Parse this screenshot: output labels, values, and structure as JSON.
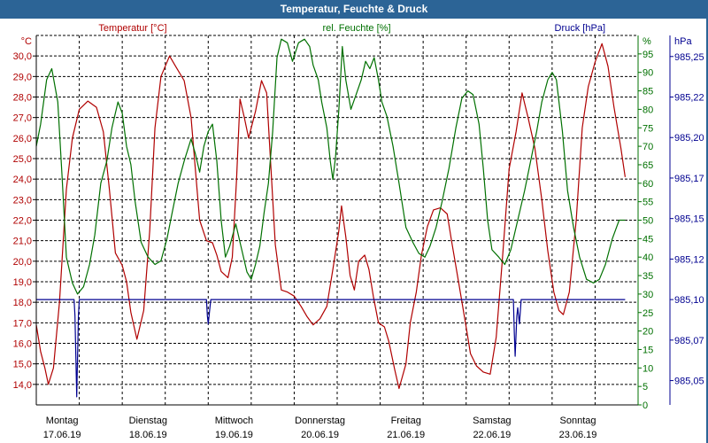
{
  "window": {
    "title": "Temperatur, Feuchte & Druck"
  },
  "colors": {
    "temperature": "#b00000",
    "humidity": "#007000",
    "pressure": "#000090",
    "titlebar": "#2c6496"
  },
  "chart_data": {
    "type": "line",
    "title": "Temperatur, Feuchte & Druck",
    "grid": true,
    "axes": {
      "left": {
        "label": "Temperatur [°C]",
        "unit": "°C",
        "range": [
          13.0,
          31.0
        ],
        "ticks": [
          14.0,
          15.0,
          16.0,
          17.0,
          18.0,
          19.0,
          20.0,
          21.0,
          22.0,
          23.0,
          24.0,
          25.0,
          26.0,
          27.0,
          28.0,
          29.0,
          30.0
        ]
      },
      "right1": {
        "label": "rel. Feuchte [%]",
        "unit": "%",
        "range": [
          0,
          100
        ],
        "ticks": [
          0,
          5,
          10,
          15,
          20,
          25,
          30,
          35,
          40,
          45,
          50,
          55,
          60,
          65,
          70,
          75,
          80,
          85,
          90,
          95
        ]
      },
      "right2": {
        "label": "Druck [hPa]",
        "unit": "hPa",
        "range": [
          985.035,
          985.263
        ],
        "ticks": [
          "985,05",
          "985,07",
          "985,10",
          "985,12",
          "985,15",
          "985,17",
          "985,20",
          "985,22",
          "985,25"
        ],
        "tick_values": [
          985.05,
          985.075,
          985.1,
          985.125,
          985.15,
          985.175,
          985.2,
          985.225,
          985.25
        ]
      }
    },
    "x_axis": {
      "range": [
        0,
        7
      ],
      "ticks": [
        {
          "day": "Montag",
          "date": "17.06.19"
        },
        {
          "day": "Dienstag",
          "date": "18.06.19"
        },
        {
          "day": "Mittwoch",
          "date": "19.06.19"
        },
        {
          "day": "Donnerstag",
          "date": "20.06.19"
        },
        {
          "day": "Freitag",
          "date": "21.06.19"
        },
        {
          "day": "Samstag",
          "date": "22.06.19"
        },
        {
          "day": "Sonntag",
          "date": "23.06.19"
        }
      ]
    },
    "series": [
      {
        "name": "Temperatur [°C]",
        "axis": "left",
        "points": [
          [
            0.0,
            16.9
          ],
          [
            0.05,
            15.6
          ],
          [
            0.1,
            14.8
          ],
          [
            0.14,
            14.0
          ],
          [
            0.2,
            14.8
          ],
          [
            0.27,
            18.0
          ],
          [
            0.35,
            23.5
          ],
          [
            0.42,
            26.0
          ],
          [
            0.5,
            27.4
          ],
          [
            0.6,
            27.8
          ],
          [
            0.7,
            27.5
          ],
          [
            0.78,
            26.3
          ],
          [
            0.85,
            23.5
          ],
          [
            0.92,
            20.4
          ],
          [
            1.0,
            19.8
          ],
          [
            1.05,
            19.0
          ],
          [
            1.1,
            17.5
          ],
          [
            1.17,
            16.2
          ],
          [
            1.25,
            17.6
          ],
          [
            1.32,
            21.5
          ],
          [
            1.38,
            26.5
          ],
          [
            1.45,
            29.0
          ],
          [
            1.55,
            30.0
          ],
          [
            1.62,
            29.5
          ],
          [
            1.72,
            28.8
          ],
          [
            1.8,
            27.0
          ],
          [
            1.85,
            24.5
          ],
          [
            1.9,
            22.0
          ],
          [
            1.98,
            21.0
          ],
          [
            2.05,
            20.9
          ],
          [
            2.1,
            20.3
          ],
          [
            2.15,
            19.5
          ],
          [
            2.23,
            19.2
          ],
          [
            2.28,
            20.2
          ],
          [
            2.33,
            24.0
          ],
          [
            2.37,
            27.9
          ],
          [
            2.42,
            27.0
          ],
          [
            2.47,
            26.0
          ],
          [
            2.55,
            27.3
          ],
          [
            2.62,
            28.8
          ],
          [
            2.68,
            28.2
          ],
          [
            2.73,
            24.5
          ],
          [
            2.78,
            20.8
          ],
          [
            2.85,
            18.6
          ],
          [
            2.92,
            18.5
          ],
          [
            3.0,
            18.3
          ],
          [
            3.08,
            17.8
          ],
          [
            3.15,
            17.3
          ],
          [
            3.22,
            16.9
          ],
          [
            3.3,
            17.2
          ],
          [
            3.38,
            17.8
          ],
          [
            3.45,
            19.6
          ],
          [
            3.52,
            21.5
          ],
          [
            3.55,
            22.7
          ],
          [
            3.6,
            21.2
          ],
          [
            3.65,
            19.3
          ],
          [
            3.7,
            18.6
          ],
          [
            3.75,
            20.0
          ],
          [
            3.82,
            20.3
          ],
          [
            3.87,
            19.6
          ],
          [
            3.92,
            18.3
          ],
          [
            3.98,
            17.0
          ],
          [
            4.05,
            16.8
          ],
          [
            4.1,
            16.1
          ],
          [
            4.17,
            14.7
          ],
          [
            4.22,
            13.8
          ],
          [
            4.3,
            15.0
          ],
          [
            4.35,
            17.0
          ],
          [
            4.42,
            18.5
          ],
          [
            4.48,
            20.3
          ],
          [
            4.55,
            21.7
          ],
          [
            4.62,
            22.5
          ],
          [
            4.7,
            22.6
          ],
          [
            4.78,
            22.3
          ],
          [
            4.83,
            21.0
          ],
          [
            4.92,
            18.8
          ],
          [
            5.0,
            16.8
          ],
          [
            5.05,
            15.5
          ],
          [
            5.12,
            14.9
          ],
          [
            5.2,
            14.6
          ],
          [
            5.28,
            14.5
          ],
          [
            5.35,
            16.3
          ],
          [
            5.42,
            20.0
          ],
          [
            5.5,
            24.5
          ],
          [
            5.58,
            26.3
          ],
          [
            5.65,
            28.2
          ],
          [
            5.72,
            27.0
          ],
          [
            5.8,
            25.5
          ],
          [
            5.88,
            23.0
          ],
          [
            5.95,
            20.5
          ],
          [
            6.02,
            18.5
          ],
          [
            6.08,
            17.6
          ],
          [
            6.13,
            17.4
          ],
          [
            6.2,
            18.5
          ],
          [
            6.28,
            22.0
          ],
          [
            6.35,
            26.5
          ],
          [
            6.42,
            28.5
          ],
          [
            6.5,
            29.7
          ],
          [
            6.58,
            30.6
          ],
          [
            6.65,
            29.5
          ],
          [
            6.72,
            27.5
          ],
          [
            6.8,
            25.5
          ],
          [
            6.85,
            24.1
          ]
        ]
      },
      {
        "name": "rel. Feuchte [%]",
        "axis": "right1",
        "points": [
          [
            0.0,
            70
          ],
          [
            0.05,
            76
          ],
          [
            0.12,
            88
          ],
          [
            0.18,
            91
          ],
          [
            0.25,
            82
          ],
          [
            0.3,
            62
          ],
          [
            0.35,
            40
          ],
          [
            0.42,
            33
          ],
          [
            0.48,
            30
          ],
          [
            0.55,
            32
          ],
          [
            0.62,
            38
          ],
          [
            0.68,
            46
          ],
          [
            0.75,
            60
          ],
          [
            0.82,
            66
          ],
          [
            0.88,
            75
          ],
          [
            0.95,
            82
          ],
          [
            1.0,
            79
          ],
          [
            1.05,
            70
          ],
          [
            1.1,
            65
          ],
          [
            1.15,
            55
          ],
          [
            1.22,
            44
          ],
          [
            1.3,
            40
          ],
          [
            1.38,
            38
          ],
          [
            1.45,
            39
          ],
          [
            1.52,
            45
          ],
          [
            1.58,
            52
          ],
          [
            1.65,
            60
          ],
          [
            1.72,
            66
          ],
          [
            1.8,
            72
          ],
          [
            1.85,
            68
          ],
          [
            1.9,
            63
          ],
          [
            1.95,
            70
          ],
          [
            2.0,
            74
          ],
          [
            2.05,
            76
          ],
          [
            2.1,
            66
          ],
          [
            2.15,
            50
          ],
          [
            2.2,
            40
          ],
          [
            2.25,
            43
          ],
          [
            2.32,
            49
          ],
          [
            2.38,
            43
          ],
          [
            2.45,
            36
          ],
          [
            2.5,
            34
          ],
          [
            2.55,
            38
          ],
          [
            2.6,
            43
          ],
          [
            2.65,
            52
          ],
          [
            2.7,
            60
          ],
          [
            2.75,
            74
          ],
          [
            2.8,
            94
          ],
          [
            2.85,
            99
          ],
          [
            2.92,
            98
          ],
          [
            2.98,
            93
          ],
          [
            3.05,
            98
          ],
          [
            3.12,
            99
          ],
          [
            3.18,
            97
          ],
          [
            3.22,
            92
          ],
          [
            3.28,
            88
          ],
          [
            3.32,
            82
          ],
          [
            3.38,
            75
          ],
          [
            3.42,
            66
          ],
          [
            3.45,
            61
          ],
          [
            3.48,
            67
          ],
          [
            3.52,
            80
          ],
          [
            3.56,
            97
          ],
          [
            3.6,
            88
          ],
          [
            3.66,
            80
          ],
          [
            3.72,
            84
          ],
          [
            3.78,
            88
          ],
          [
            3.83,
            93
          ],
          [
            3.88,
            91
          ],
          [
            3.93,
            94
          ],
          [
            3.98,
            88
          ],
          [
            4.02,
            82
          ],
          [
            4.08,
            78
          ],
          [
            4.15,
            70
          ],
          [
            4.22,
            60
          ],
          [
            4.3,
            48
          ],
          [
            4.38,
            44
          ],
          [
            4.45,
            41
          ],
          [
            4.52,
            40
          ],
          [
            4.58,
            43
          ],
          [
            4.65,
            48
          ],
          [
            4.72,
            55
          ],
          [
            4.8,
            64
          ],
          [
            4.88,
            75
          ],
          [
            4.95,
            83
          ],
          [
            5.02,
            85
          ],
          [
            5.08,
            84
          ],
          [
            5.15,
            76
          ],
          [
            5.2,
            64
          ],
          [
            5.25,
            50
          ],
          [
            5.3,
            42
          ],
          [
            5.38,
            40
          ],
          [
            5.45,
            38
          ],
          [
            5.52,
            42
          ],
          [
            5.6,
            50
          ],
          [
            5.68,
            58
          ],
          [
            5.75,
            66
          ],
          [
            5.82,
            74
          ],
          [
            5.88,
            82
          ],
          [
            5.95,
            88
          ],
          [
            6.0,
            90
          ],
          [
            6.05,
            88
          ],
          [
            6.12,
            74
          ],
          [
            6.18,
            58
          ],
          [
            6.25,
            48
          ],
          [
            6.32,
            40
          ],
          [
            6.4,
            34
          ],
          [
            6.48,
            33
          ],
          [
            6.55,
            34
          ],
          [
            6.62,
            38
          ],
          [
            6.7,
            45
          ],
          [
            6.78,
            50
          ],
          [
            6.85,
            50
          ]
        ]
      },
      {
        "name": "Druck [hPa]",
        "axis": "right2",
        "points": [
          [
            0.0,
            985.1
          ],
          [
            0.44,
            985.1
          ],
          [
            0.45,
            985.09
          ],
          [
            0.47,
            985.04
          ],
          [
            0.49,
            985.09
          ],
          [
            0.5,
            985.1
          ],
          [
            1.98,
            985.1
          ],
          [
            1.99,
            985.09
          ],
          [
            2.0,
            985.085
          ],
          [
            2.02,
            985.095
          ],
          [
            2.03,
            985.1
          ],
          [
            5.55,
            985.1
          ],
          [
            5.56,
            985.08
          ],
          [
            5.57,
            985.065
          ],
          [
            5.59,
            985.09
          ],
          [
            5.6,
            985.095
          ],
          [
            5.62,
            985.085
          ],
          [
            5.64,
            985.1
          ],
          [
            6.85,
            985.1
          ]
        ]
      }
    ]
  }
}
